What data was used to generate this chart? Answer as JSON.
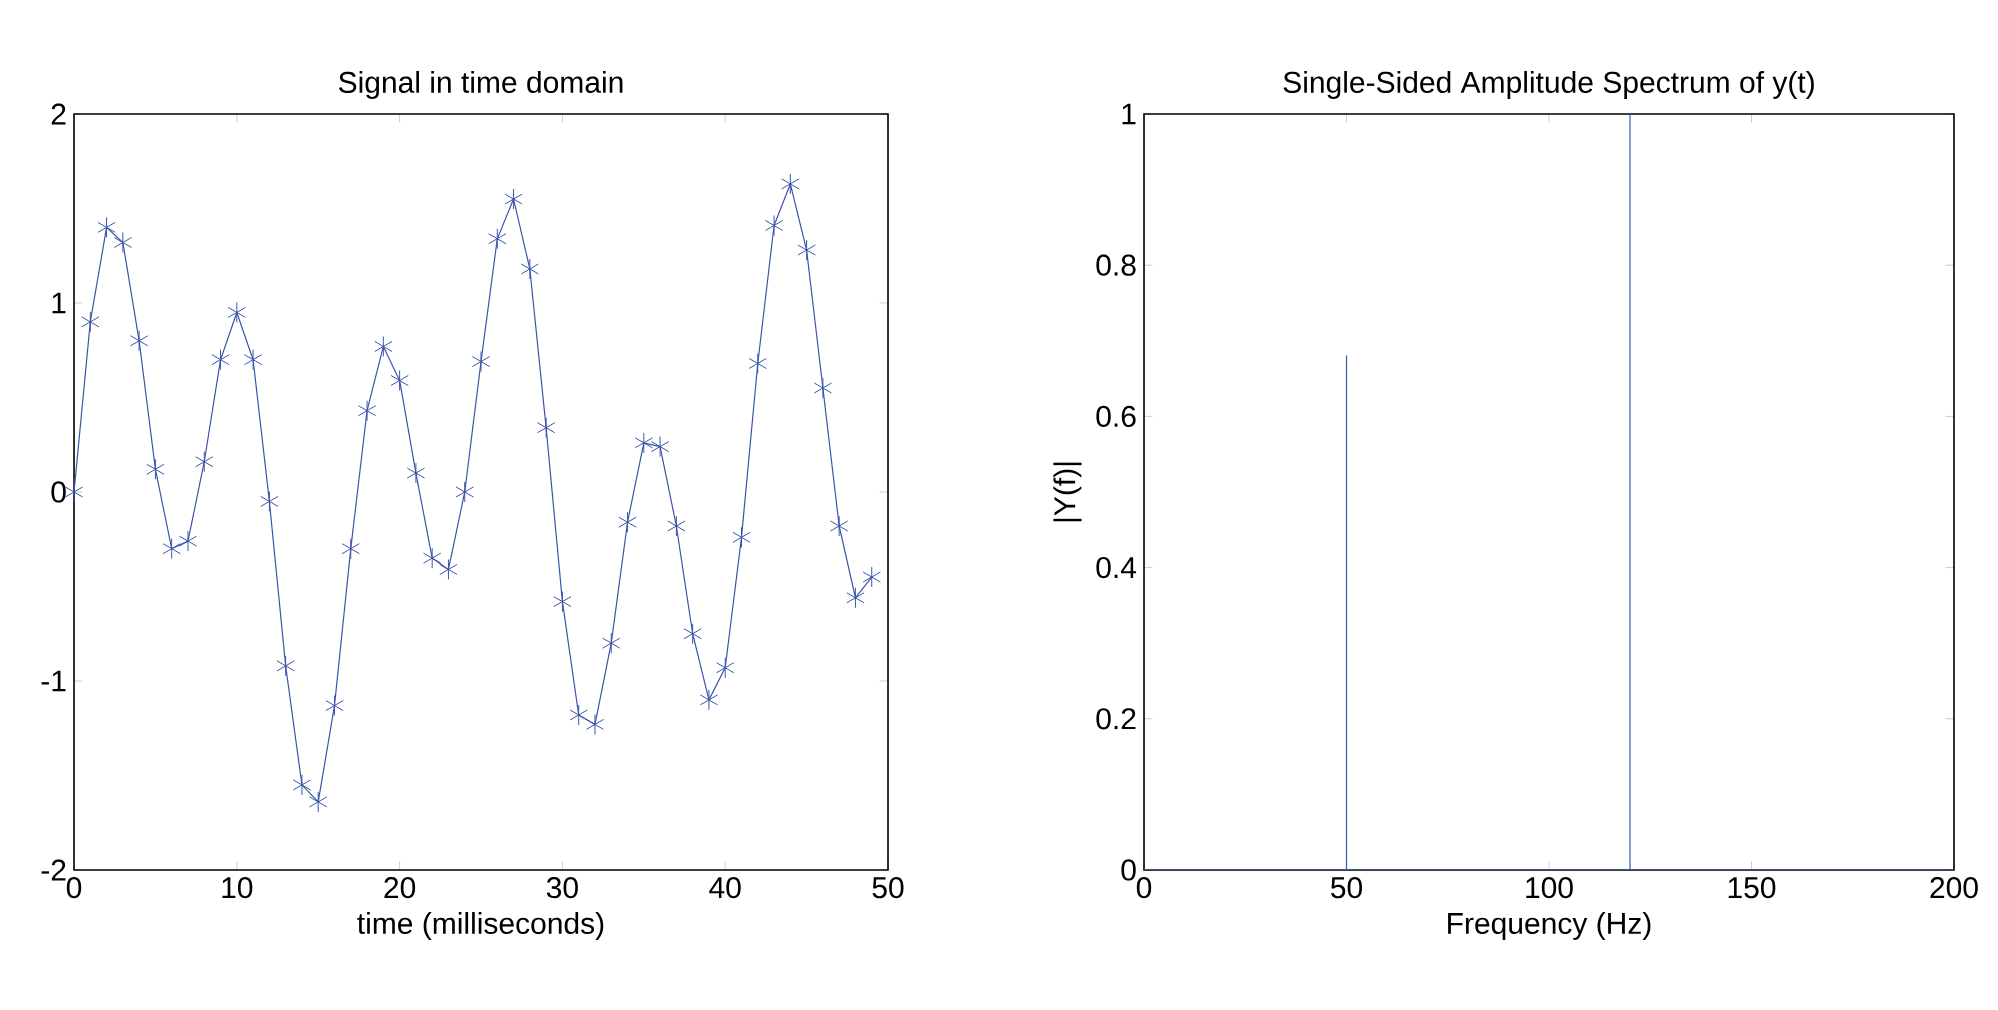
{
  "chart_data": [
    {
      "type": "line",
      "title": "Signal in time domain",
      "xlabel": "time (milliseconds)",
      "marker": "cross",
      "line_style": "solid",
      "grid": false,
      "xlim": [
        0,
        50
      ],
      "ylim": [
        -2,
        2
      ],
      "xticks": [
        0,
        10,
        20,
        30,
        40,
        50
      ],
      "yticks": [
        -2,
        -1,
        0,
        1,
        2
      ],
      "x": [
        0,
        1,
        2,
        3,
        4,
        5,
        6,
        7,
        8,
        9,
        10,
        11,
        12,
        13,
        14,
        15,
        16,
        17,
        18,
        19,
        20,
        21,
        22,
        23,
        24,
        25,
        26,
        27,
        28,
        29,
        30,
        31,
        32,
        33,
        34,
        35,
        36,
        37,
        38,
        39,
        40,
        41,
        42,
        43,
        44,
        45,
        46,
        47,
        48,
        49
      ],
      "series": [
        {
          "color": "#3a55a8",
          "values": [
            0,
            0.9,
            1.4,
            1.32,
            0.8,
            0.12,
            -0.3,
            -0.26,
            0.16,
            0.7,
            0.95,
            0.7,
            -0.05,
            -0.92,
            -1.55,
            -1.64,
            -1.13,
            -0.3,
            0.43,
            0.77,
            0.59,
            0.1,
            -0.35,
            -0.41,
            0,
            0.69,
            1.34,
            1.55,
            1.18,
            0.34,
            -0.58,
            -1.18,
            -1.23,
            -0.8,
            -0.16,
            0.26,
            0.24,
            -0.18,
            -0.75,
            -1.1,
            -0.93,
            -0.24,
            0.68,
            1.41,
            1.63,
            1.28,
            0.55,
            -0.18,
            -0.56,
            -0.45
          ]
        }
      ]
    },
    {
      "type": "line",
      "title": "Single-Sided Amplitude Spectrum of y(t)",
      "xlabel": "Frequency (Hz)",
      "ylabel": "|Y(f)|",
      "marker": "none",
      "line_style": "solid",
      "grid": false,
      "xlim": [
        0,
        200
      ],
      "ylim": [
        0,
        1
      ],
      "xticks": [
        0,
        50,
        100,
        150,
        200
      ],
      "yticks": [
        0,
        0.2,
        0.4,
        0.6,
        0.8,
        1
      ],
      "x": [
        0,
        50,
        50,
        50,
        120,
        120,
        120,
        200
      ],
      "series": [
        {
          "color": "#3a55a8",
          "values": [
            0,
            0,
            0.68,
            0,
            0,
            1,
            0,
            0
          ]
        }
      ]
    }
  ]
}
